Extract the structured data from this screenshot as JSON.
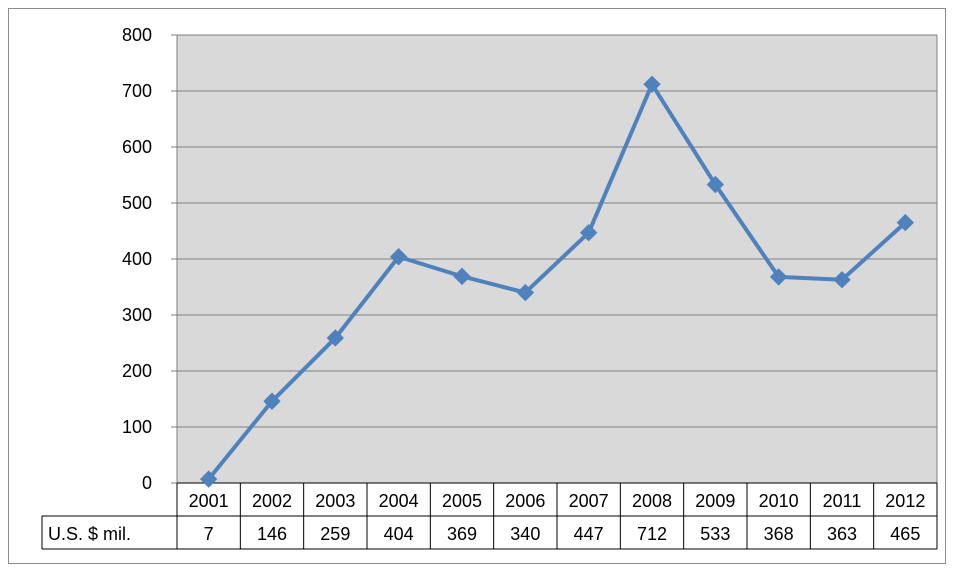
{
  "chart_data": {
    "type": "line",
    "categories": [
      "2001",
      "2002",
      "2003",
      "2004",
      "2005",
      "2006",
      "2007",
      "2008",
      "2009",
      "2010",
      "2011",
      "2012"
    ],
    "series": [
      {
        "name": "U.S. $ mil.",
        "values": [
          7,
          146,
          259,
          404,
          369,
          340,
          447,
          712,
          533,
          368,
          363,
          465
        ]
      }
    ],
    "ylim": [
      0,
      800
    ],
    "yticks": [
      "0",
      "100",
      "200",
      "300",
      "400",
      "500",
      "600",
      "700",
      "800"
    ],
    "grid": true,
    "legend": "data-table",
    "colors": {
      "line": "#4f81bd",
      "plot_bg": "#d9d9d9",
      "grid": "#7f7f7f"
    }
  }
}
